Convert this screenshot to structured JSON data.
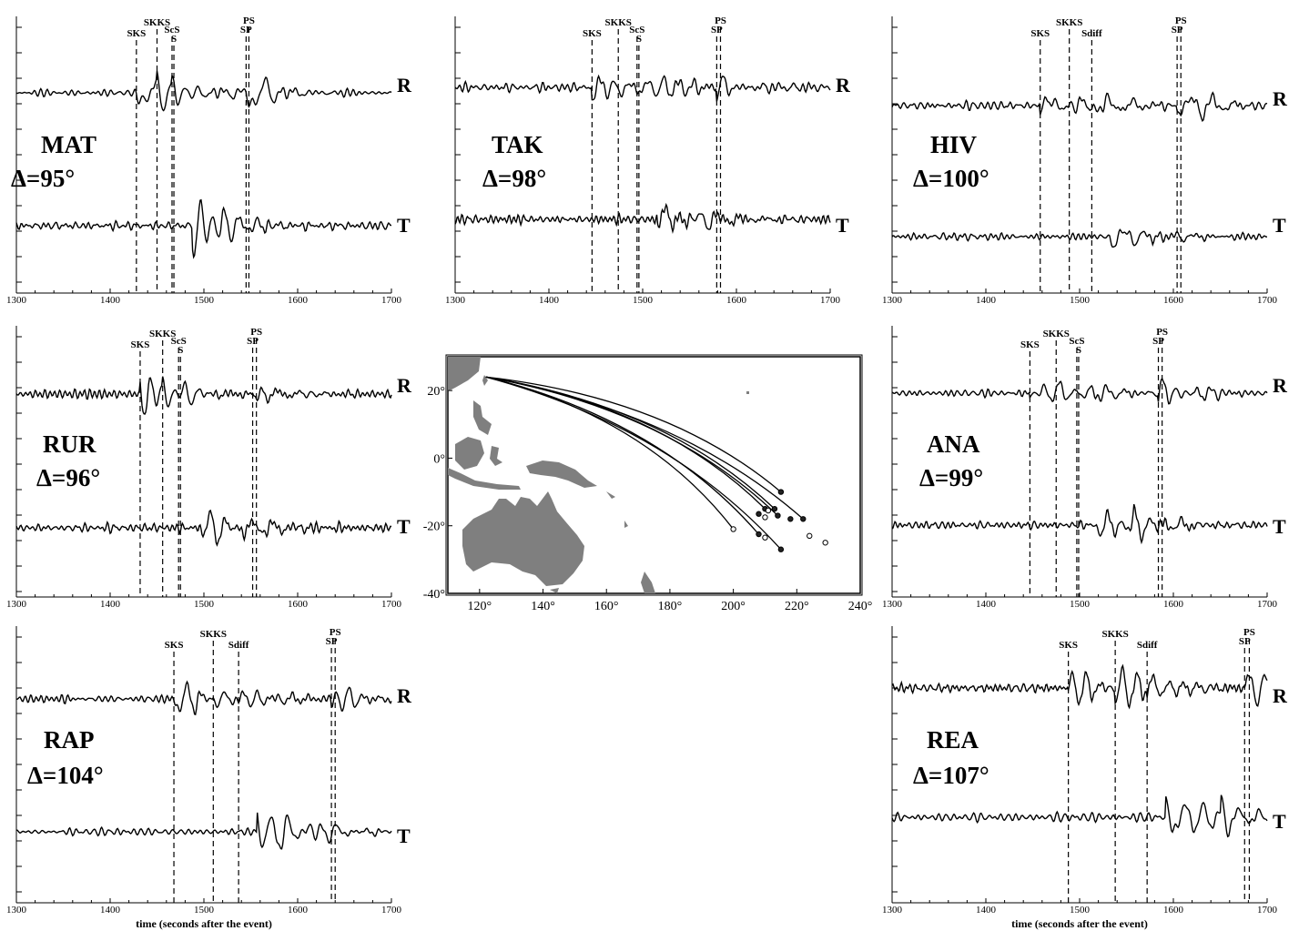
{
  "figure": {
    "xlabel": "time (seconds after the event)"
  },
  "chart_data": [
    {
      "type": "line",
      "station": "MAT",
      "distance_label": "Δ=95°",
      "xlim": [
        1300,
        1700
      ],
      "xticks": [
        1300,
        1400,
        1500,
        1600,
        1700
      ],
      "components": [
        "R",
        "T"
      ],
      "phases": [
        {
          "name": "SKS",
          "time": 1428
        },
        {
          "name": "SKKS",
          "time": 1450
        },
        {
          "name": "ScS",
          "time": 1466
        },
        {
          "name": "S",
          "time": 1468
        },
        {
          "name": "SP",
          "time": 1545
        },
        {
          "name": "PS",
          "time": 1548
        }
      ],
      "show_xlabel": false
    },
    {
      "type": "line",
      "station": "TAK",
      "distance_label": "Δ=98°",
      "xlim": [
        1300,
        1700
      ],
      "xticks": [
        1300,
        1400,
        1500,
        1600,
        1700
      ],
      "components": [
        "R",
        "T"
      ],
      "phases": [
        {
          "name": "SKS",
          "time": 1446
        },
        {
          "name": "SKKS",
          "time": 1474
        },
        {
          "name": "ScS",
          "time": 1494
        },
        {
          "name": "S",
          "time": 1496
        },
        {
          "name": "SP",
          "time": 1579
        },
        {
          "name": "PS",
          "time": 1583
        }
      ],
      "show_xlabel": false
    },
    {
      "type": "line",
      "station": "HIV",
      "distance_label": "Δ=100°",
      "xlim": [
        1300,
        1700
      ],
      "xticks": [
        1300,
        1400,
        1500,
        1600,
        1700
      ],
      "components": [
        "R",
        "T"
      ],
      "phases": [
        {
          "name": "SKS",
          "time": 1458
        },
        {
          "name": "SKKS",
          "time": 1489
        },
        {
          "name": "Sdiff",
          "time": 1513
        },
        {
          "name": "SP",
          "time": 1604
        },
        {
          "name": "PS",
          "time": 1608
        }
      ],
      "show_xlabel": false
    },
    {
      "type": "line",
      "station": "RUR",
      "distance_label": "Δ=96°",
      "xlim": [
        1300,
        1700
      ],
      "xticks": [
        1300,
        1400,
        1500,
        1600,
        1700
      ],
      "components": [
        "R",
        "T"
      ],
      "phases": [
        {
          "name": "SKS",
          "time": 1432
        },
        {
          "name": "SKKS",
          "time": 1456
        },
        {
          "name": "ScS",
          "time": 1473
        },
        {
          "name": "S",
          "time": 1475
        },
        {
          "name": "SP",
          "time": 1552
        },
        {
          "name": "PS",
          "time": 1556
        }
      ],
      "show_xlabel": false
    },
    {
      "type": "line",
      "station": "ANA",
      "distance_label": "Δ=99°",
      "xlim": [
        1300,
        1700
      ],
      "xticks": [
        1300,
        1400,
        1500,
        1600,
        1700
      ],
      "components": [
        "R",
        "T"
      ],
      "phases": [
        {
          "name": "SKS",
          "time": 1447
        },
        {
          "name": "SKKS",
          "time": 1475
        },
        {
          "name": "ScS",
          "time": 1497
        },
        {
          "name": "S",
          "time": 1499
        },
        {
          "name": "SP",
          "time": 1584
        },
        {
          "name": "PS",
          "time": 1588
        }
      ],
      "show_xlabel": false
    },
    {
      "type": "line",
      "station": "RAP",
      "distance_label": "Δ=104°",
      "xlim": [
        1300,
        1700
      ],
      "xticks": [
        1300,
        1400,
        1500,
        1600,
        1700
      ],
      "components": [
        "R",
        "T"
      ],
      "phases": [
        {
          "name": "SKS",
          "time": 1468
        },
        {
          "name": "SKKS",
          "time": 1510
        },
        {
          "name": "Sdiff",
          "time": 1537
        },
        {
          "name": "SP",
          "time": 1636
        },
        {
          "name": "PS",
          "time": 1640
        }
      ],
      "show_xlabel": true
    },
    {
      "type": "line",
      "station": "REA",
      "distance_label": "Δ=107°",
      "xlim": [
        1300,
        1700
      ],
      "xticks": [
        1300,
        1400,
        1500,
        1600,
        1700
      ],
      "components": [
        "R",
        "T"
      ],
      "phases": [
        {
          "name": "SKS",
          "time": 1488
        },
        {
          "name": "SKKS",
          "time": 1538
        },
        {
          "name": "Sdiff",
          "time": 1572
        },
        {
          "name": "SP",
          "time": 1676
        },
        {
          "name": "PS",
          "time": 1681
        }
      ],
      "show_xlabel": true
    }
  ],
  "map": {
    "xticks": [
      "120°",
      "140°",
      "160°",
      "180°",
      "200°",
      "220°",
      "240°"
    ],
    "yticks": [
      "20°",
      "0°",
      "-20°",
      "-40°"
    ],
    "lon_range": [
      110,
      240
    ],
    "lat_range": [
      -40,
      30
    ],
    "source": {
      "lon": 122,
      "lat": 24
    },
    "stations": [
      {
        "lon": 215,
        "lat": -10,
        "filled": true
      },
      {
        "lon": 222,
        "lat": -18,
        "filled": true
      },
      {
        "lon": 210,
        "lat": -15,
        "filled": true
      },
      {
        "lon": 213,
        "lat": -15,
        "filled": true
      },
      {
        "lon": 214,
        "lat": -17,
        "filled": true
      },
      {
        "lon": 208,
        "lat": -16.5,
        "filled": true
      },
      {
        "lon": 218,
        "lat": -18,
        "filled": true
      },
      {
        "lon": 208,
        "lat": -22.5,
        "filled": true
      },
      {
        "lon": 215,
        "lat": -27,
        "filled": true
      },
      {
        "lon": 211,
        "lat": -15.5,
        "filled": false
      },
      {
        "lon": 210,
        "lat": -17.5,
        "filled": false
      },
      {
        "lon": 224,
        "lat": -23,
        "filled": false
      },
      {
        "lon": 229,
        "lat": -25,
        "filled": false
      },
      {
        "lon": 210,
        "lat": -23.5,
        "filled": false
      },
      {
        "lon": 200,
        "lat": -21,
        "filled": false
      }
    ],
    "paths_to": [
      {
        "lon": 215,
        "lat": -10
      },
      {
        "lon": 222,
        "lat": -18
      },
      {
        "lon": 214,
        "lat": -17
      },
      {
        "lon": 213,
        "lat": -15
      },
      {
        "lon": 210,
        "lat": -15
      },
      {
        "lon": 208,
        "lat": -22.5
      },
      {
        "lon": 215,
        "lat": -27
      },
      {
        "lon": 200,
        "lat": -21
      }
    ],
    "land_color": "#7f7f7f"
  }
}
